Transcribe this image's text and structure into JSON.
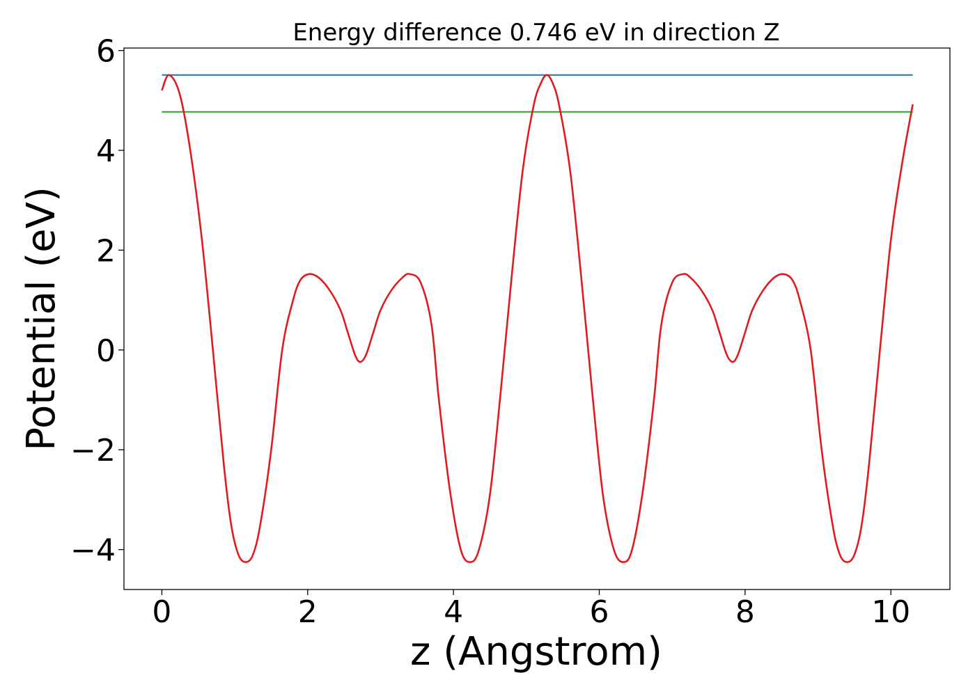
{
  "chart_data": {
    "type": "line",
    "title": "Energy difference 0.746 eV in direction Z",
    "xlabel": "z (Angstrom)",
    "ylabel": "Potential (eV)",
    "xlim": [
      -0.52,
      10.81
    ],
    "ylim": [
      -4.8,
      6.05
    ],
    "xticks": [
      0,
      2,
      4,
      6,
      8,
      10
    ],
    "yticks": [
      -4,
      -2,
      0,
      2,
      4,
      6
    ],
    "xtick_labels": [
      "0",
      "2",
      "4",
      "6",
      "8",
      "10"
    ],
    "ytick_labels": [
      "−4",
      "−2",
      "0",
      "2",
      "4",
      "6"
    ],
    "grid": false,
    "series": [
      {
        "kind": "hline",
        "y": 5.51,
        "x_range": [
          0,
          10.3
        ],
        "color": "#1f77b4"
      },
      {
        "kind": "hline",
        "y": 4.77,
        "x_range": [
          0,
          10.3
        ],
        "color": "#2ca02c"
      },
      {
        "kind": "curve",
        "color": "#e31a1c",
        "points": [
          [
            0.0,
            5.2
          ],
          [
            0.1,
            5.51
          ],
          [
            0.25,
            5.1
          ],
          [
            0.4,
            3.9
          ],
          [
            0.55,
            2.2
          ],
          [
            0.7,
            0.0
          ],
          [
            0.85,
            -2.3
          ],
          [
            0.95,
            -3.5
          ],
          [
            1.05,
            -4.1
          ],
          [
            1.15,
            -4.25
          ],
          [
            1.25,
            -4.1
          ],
          [
            1.35,
            -3.5
          ],
          [
            1.5,
            -2.0
          ],
          [
            1.65,
            0.0
          ],
          [
            1.8,
            1.0
          ],
          [
            1.9,
            1.4
          ],
          [
            2.02,
            1.52
          ],
          [
            2.15,
            1.45
          ],
          [
            2.3,
            1.2
          ],
          [
            2.45,
            0.8
          ],
          [
            2.55,
            0.35
          ],
          [
            2.65,
            -0.1
          ],
          [
            2.72,
            -0.24
          ],
          [
            2.8,
            -0.1
          ],
          [
            2.9,
            0.35
          ],
          [
            3.0,
            0.8
          ],
          [
            3.15,
            1.2
          ],
          [
            3.3,
            1.45
          ],
          [
            3.4,
            1.52
          ],
          [
            3.55,
            1.35
          ],
          [
            3.7,
            0.5
          ],
          [
            3.8,
            -1.0
          ],
          [
            3.95,
            -2.8
          ],
          [
            4.1,
            -4.0
          ],
          [
            4.23,
            -4.25
          ],
          [
            4.35,
            -4.0
          ],
          [
            4.5,
            -2.9
          ],
          [
            4.65,
            -0.8
          ],
          [
            4.8,
            1.5
          ],
          [
            4.95,
            3.6
          ],
          [
            5.1,
            4.9
          ],
          [
            5.2,
            5.35
          ],
          [
            5.28,
            5.51
          ],
          [
            5.36,
            5.35
          ],
          [
            5.45,
            4.9
          ],
          [
            5.6,
            3.6
          ],
          [
            5.75,
            1.5
          ],
          [
            5.9,
            -0.8
          ],
          [
            6.05,
            -2.9
          ],
          [
            6.2,
            -4.0
          ],
          [
            6.33,
            -4.25
          ],
          [
            6.45,
            -4.0
          ],
          [
            6.6,
            -2.8
          ],
          [
            6.75,
            -1.0
          ],
          [
            6.85,
            0.5
          ],
          [
            7.0,
            1.35
          ],
          [
            7.15,
            1.52
          ],
          [
            7.25,
            1.45
          ],
          [
            7.4,
            1.2
          ],
          [
            7.55,
            0.8
          ],
          [
            7.65,
            0.35
          ],
          [
            7.75,
            -0.1
          ],
          [
            7.83,
            -0.24
          ],
          [
            7.9,
            -0.1
          ],
          [
            8.0,
            0.35
          ],
          [
            8.1,
            0.8
          ],
          [
            8.25,
            1.2
          ],
          [
            8.4,
            1.45
          ],
          [
            8.53,
            1.52
          ],
          [
            8.65,
            1.4
          ],
          [
            8.75,
            1.0
          ],
          [
            8.9,
            0.0
          ],
          [
            9.05,
            -2.0
          ],
          [
            9.2,
            -3.5
          ],
          [
            9.3,
            -4.1
          ],
          [
            9.4,
            -4.25
          ],
          [
            9.5,
            -4.1
          ],
          [
            9.6,
            -3.5
          ],
          [
            9.7,
            -2.3
          ],
          [
            9.85,
            0.0
          ],
          [
            10.0,
            2.2
          ],
          [
            10.15,
            3.7
          ],
          [
            10.3,
            4.92
          ]
        ]
      }
    ]
  }
}
